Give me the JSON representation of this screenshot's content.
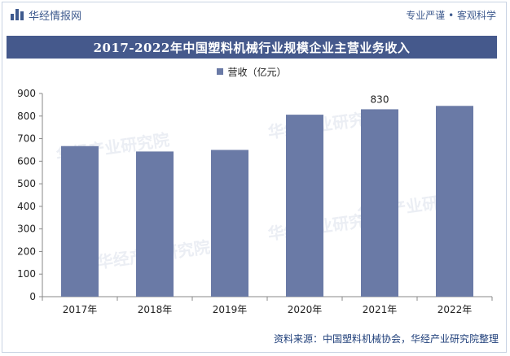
{
  "header": {
    "brand": "华经情报网",
    "tagline": "专业严谨 • 客观科学"
  },
  "watermark_text": "华经产业研究院",
  "source": "资料来源：中国塑料机械协会，华经产业研究院整理",
  "colors": {
    "bar": "#6a7aa6",
    "title_bg": "#45598c",
    "brand": "#3e5a8e"
  },
  "chart_data": {
    "type": "bar",
    "title": "2017-2022年中国塑料机械行业规模企业主营业务收入",
    "categories": [
      "2017年",
      "2018年",
      "2019年",
      "2020年",
      "2021年",
      "2022年"
    ],
    "series": [
      {
        "name": "营收（亿元）",
        "values": [
          667,
          643,
          650,
          806,
          830,
          845
        ]
      }
    ],
    "data_labels": [
      {
        "category": "2021年",
        "text": "830"
      }
    ],
    "y_ticks": [
      0,
      100,
      200,
      300,
      400,
      500,
      600,
      700,
      800,
      900
    ],
    "ylim": [
      0,
      900
    ],
    "grid": false,
    "legend_position": "top-center"
  }
}
